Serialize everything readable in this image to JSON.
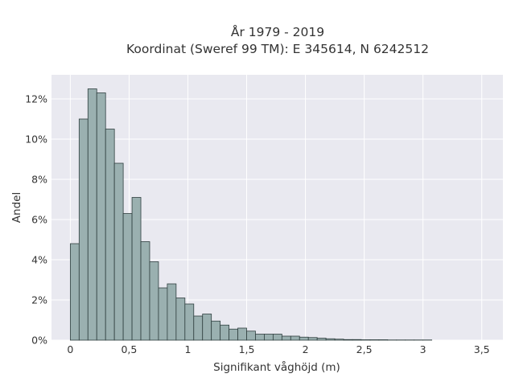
{
  "chart_data": {
    "type": "bar",
    "title": "År 1979 - 2019",
    "subtitle": "Koordinat (Sweref 99 TM): E 345614, N 6242512",
    "xlabel": "Signifikant våghöjd (m)",
    "ylabel": "Andel",
    "xlim": [
      -0.16,
      3.68
    ],
    "ylim": [
      0,
      0.132
    ],
    "grid": true,
    "xticks": [
      0,
      0.5,
      1,
      1.5,
      2,
      2.5,
      3,
      3.5
    ],
    "xtick_labels": [
      "0",
      "0,5",
      "1",
      "1,5",
      "2",
      "2,5",
      "3",
      "3,5"
    ],
    "yticks": [
      0,
      0.02,
      0.04,
      0.06,
      0.08,
      0.1,
      0.12
    ],
    "ytick_labels": [
      "0%",
      "2%",
      "4%",
      "6%",
      "8%",
      "10%",
      "12%"
    ],
    "bin_width": 0.075,
    "bin_start": 0.0,
    "values": [
      0.048,
      0.11,
      0.125,
      0.123,
      0.105,
      0.088,
      0.063,
      0.071,
      0.049,
      0.039,
      0.026,
      0.028,
      0.021,
      0.018,
      0.012,
      0.013,
      0.0095,
      0.0075,
      0.0055,
      0.006,
      0.0045,
      0.003,
      0.003,
      0.003,
      0.002,
      0.002,
      0.0015,
      0.0013,
      0.001,
      0.0007,
      0.0005,
      0.0003,
      0.0003,
      0.0002,
      0.0002,
      0.0002,
      0.0001,
      0.0001,
      0.0001,
      0.0001,
      0.0001
    ]
  },
  "colors": {
    "plot_background": "#e9e9f0",
    "bar_fill": "#9ab0b0",
    "bar_edge": "#2f3f3f",
    "grid": "#ffffff",
    "text": "#333333"
  }
}
